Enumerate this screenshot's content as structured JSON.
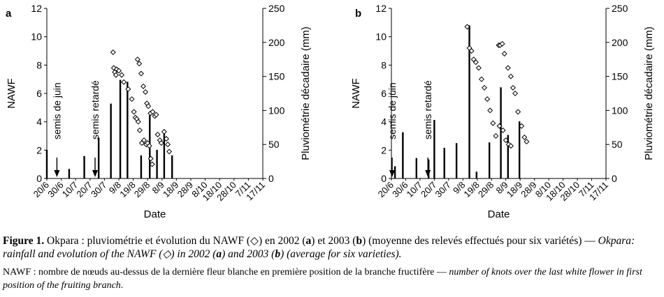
{
  "chart_data": [
    {
      "type": "bar+scatter",
      "panel_label": "a",
      "xlabel": "Date",
      "ylabel_left": "NAWF",
      "ylabel_right": "Pluviométrie décadaire (mm)",
      "ylim_left": [
        0,
        12
      ],
      "yticks_left": [
        0,
        2,
        4,
        6,
        8,
        10,
        12
      ],
      "ylim_right": [
        0,
        250
      ],
      "yticks_right": [
        0,
        50,
        100,
        150,
        200,
        250
      ],
      "categories": [
        "20/6",
        "30/6",
        "10/7",
        "20/7",
        "30/7",
        "9/8",
        "19/8",
        "29/8",
        "8/9",
        "18/9",
        "28/9",
        "8/10",
        "18/10",
        "28/10",
        "7/11",
        "17/11"
      ],
      "rainfall_bars": [
        {
          "x": 0.0,
          "mm": 42
        },
        {
          "x": 1.55,
          "mm": 14
        },
        {
          "x": 2.6,
          "mm": 33
        },
        {
          "x": 3.6,
          "mm": 60
        },
        {
          "x": 4.45,
          "mm": 110
        },
        {
          "x": 5.1,
          "mm": 145
        },
        {
          "x": 5.6,
          "mm": 142
        },
        {
          "x": 6.55,
          "mm": 34
        },
        {
          "x": 7.15,
          "mm": 93
        },
        {
          "x": 7.65,
          "mm": 42
        },
        {
          "x": 8.15,
          "mm": 68
        },
        {
          "x": 8.7,
          "mm": 34
        }
      ],
      "nawf_points": [
        {
          "x": 4.6,
          "y": 8.9
        },
        {
          "x": 4.65,
          "y": 7.8
        },
        {
          "x": 4.72,
          "y": 7.5
        },
        {
          "x": 4.8,
          "y": 7.3
        },
        {
          "x": 4.85,
          "y": 7.7
        },
        {
          "x": 5.0,
          "y": 7.6
        },
        {
          "x": 5.2,
          "y": 7.3
        },
        {
          "x": 5.35,
          "y": 6.8
        },
        {
          "x": 5.65,
          "y": 6.3
        },
        {
          "x": 5.9,
          "y": 5.6
        },
        {
          "x": 6.05,
          "y": 4.7
        },
        {
          "x": 6.15,
          "y": 4.3
        },
        {
          "x": 6.25,
          "y": 4.2
        },
        {
          "x": 6.3,
          "y": 8.4
        },
        {
          "x": 6.42,
          "y": 8.1
        },
        {
          "x": 6.55,
          "y": 7.4
        },
        {
          "x": 6.7,
          "y": 6.5
        },
        {
          "x": 6.85,
          "y": 6.1
        },
        {
          "x": 6.95,
          "y": 5.3
        },
        {
          "x": 7.05,
          "y": 5.1
        },
        {
          "x": 7.2,
          "y": 4.6
        },
        {
          "x": 7.35,
          "y": 4.7
        },
        {
          "x": 7.5,
          "y": 4.4
        },
        {
          "x": 7.6,
          "y": 4.5
        },
        {
          "x": 6.35,
          "y": 4.0
        },
        {
          "x": 6.45,
          "y": 3.4
        },
        {
          "x": 6.6,
          "y": 2.5
        },
        {
          "x": 6.75,
          "y": 2.7
        },
        {
          "x": 6.9,
          "y": 2.4
        },
        {
          "x": 7.0,
          "y": 2.5
        },
        {
          "x": 7.12,
          "y": 2.3
        },
        {
          "x": 7.22,
          "y": 1.4
        },
        {
          "x": 7.32,
          "y": 1.0
        },
        {
          "x": 7.7,
          "y": 3.1
        },
        {
          "x": 7.85,
          "y": 2.7
        },
        {
          "x": 7.95,
          "y": 2.5
        },
        {
          "x": 8.15,
          "y": 3.3
        },
        {
          "x": 8.3,
          "y": 2.8
        },
        {
          "x": 8.4,
          "y": 2.4
        },
        {
          "x": 8.5,
          "y": 1.9
        }
      ],
      "annotations": [
        {
          "text": "semis de juin",
          "x": 0.7
        },
        {
          "text": "semis retardé",
          "x": 3.35
        }
      ]
    },
    {
      "type": "bar+scatter",
      "panel_label": "b",
      "xlabel": "Date",
      "ylabel_left": "NAWF",
      "ylabel_right": "Pluviométrie décadaire (mm)",
      "ylim_left": [
        0,
        12
      ],
      "yticks_left": [
        0,
        2,
        4,
        6,
        8,
        10,
        12
      ],
      "ylim_right": [
        0,
        250
      ],
      "yticks_right": [
        0,
        50,
        100,
        150,
        200,
        250
      ],
      "categories": [
        "20/6",
        "30/6",
        "10/7",
        "20/7",
        "30/7",
        "9/8",
        "19/8",
        "29/8",
        "8/9",
        "18/9",
        "28/9",
        "8/10",
        "18/10",
        "28/10",
        "7/11",
        "17/11"
      ],
      "rainfall_bars": [
        {
          "x": 0.25,
          "mm": 18
        },
        {
          "x": 0.8,
          "mm": 68
        },
        {
          "x": 1.75,
          "mm": 30
        },
        {
          "x": 2.6,
          "mm": 28
        },
        {
          "x": 3.0,
          "mm": 86
        },
        {
          "x": 3.7,
          "mm": 45
        },
        {
          "x": 4.55,
          "mm": 52
        },
        {
          "x": 5.45,
          "mm": 225
        },
        {
          "x": 5.95,
          "mm": 10
        },
        {
          "x": 6.85,
          "mm": 53
        },
        {
          "x": 7.65,
          "mm": 134
        },
        {
          "x": 8.15,
          "mm": 64
        },
        {
          "x": 8.95,
          "mm": 84
        }
      ],
      "nawf_points": [
        {
          "x": 5.3,
          "y": 10.7
        },
        {
          "x": 5.45,
          "y": 9.2
        },
        {
          "x": 5.6,
          "y": 9.0
        },
        {
          "x": 5.75,
          "y": 8.4
        },
        {
          "x": 5.9,
          "y": 8.2
        },
        {
          "x": 6.1,
          "y": 7.8
        },
        {
          "x": 6.3,
          "y": 7.0
        },
        {
          "x": 6.5,
          "y": 6.4
        },
        {
          "x": 6.7,
          "y": 5.6
        },
        {
          "x": 6.9,
          "y": 4.8
        },
        {
          "x": 7.1,
          "y": 3.9
        },
        {
          "x": 7.3,
          "y": 3.0
        },
        {
          "x": 7.5,
          "y": 9.4
        },
        {
          "x": 7.6,
          "y": 9.4
        },
        {
          "x": 7.75,
          "y": 9.5
        },
        {
          "x": 7.9,
          "y": 8.8
        },
        {
          "x": 8.15,
          "y": 7.8
        },
        {
          "x": 8.35,
          "y": 7.2
        },
        {
          "x": 8.5,
          "y": 6.4
        },
        {
          "x": 8.65,
          "y": 6.0
        },
        {
          "x": 8.85,
          "y": 4.7
        },
        {
          "x": 9.1,
          "y": 3.7
        },
        {
          "x": 9.3,
          "y": 2.9
        },
        {
          "x": 9.45,
          "y": 2.6
        },
        {
          "x": 7.55,
          "y": 3.7
        },
        {
          "x": 7.8,
          "y": 3.4
        },
        {
          "x": 8.0,
          "y": 2.7
        },
        {
          "x": 8.2,
          "y": 2.4
        },
        {
          "x": 8.35,
          "y": 2.3
        }
      ],
      "annotations": [
        {
          "text": "semis de juin",
          "x": 0.05
        },
        {
          "text": "semis retardé",
          "x": 2.55
        }
      ]
    }
  ],
  "caption": {
    "label": "Figure 1.",
    "fr_1": " Okpara : pluviométrie et évolution du NAWF (◇) en 2002 (",
    "fr_a": "a",
    "fr_2": ") et 2003 (",
    "fr_b": "b",
    "fr_3": ") (moyenne des relevés effectués pour six variétés) — ",
    "en_1": "Okpara: rainfall and evolution of the NAWF (◇) in 2002 (",
    "en_a": "a",
    "en_2": ") and 2003 (",
    "en_b": "b",
    "en_3": ") (average for six varieties).",
    "note_fr": "NAWF : nombre de nœuds au-dessus de la dernière fleur blanche en première position de la branche fructifère — ",
    "note_en": "number of knots over the last white flower in first position of the fruiting branch",
    "note_end": "."
  }
}
